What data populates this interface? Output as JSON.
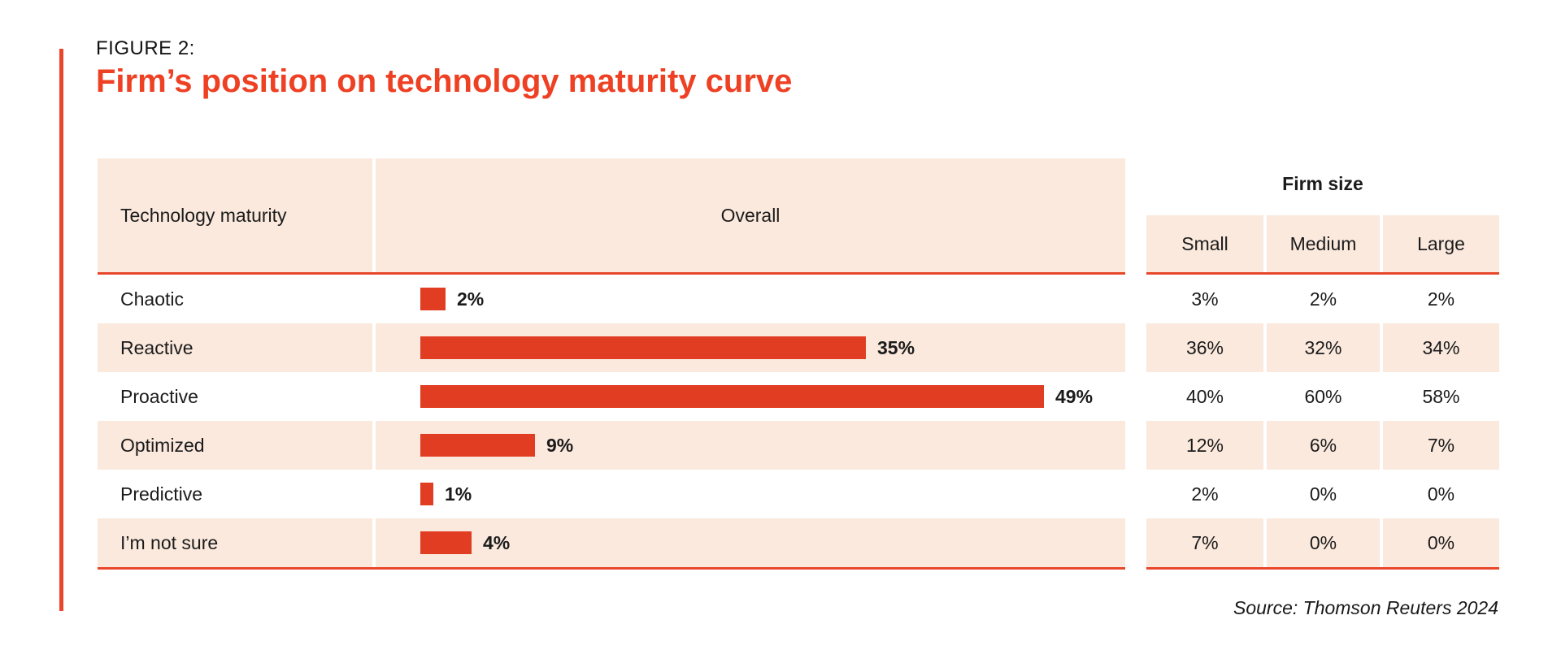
{
  "figure": {
    "label": "FIGURE 2:",
    "title": "Firm’s position on technology maturity curve"
  },
  "table": {
    "col1_header": "Technology maturity",
    "col2_header": "Overall",
    "group_header": "Firm size",
    "firm_size_columns": {
      "small": "Small",
      "medium": "Medium",
      "large": "Large"
    },
    "rows": [
      {
        "label": "Chaotic",
        "overall_value": 2,
        "overall_label": "2%",
        "small": "3%",
        "medium": "2%",
        "large": "2%"
      },
      {
        "label": "Reactive",
        "overall_value": 35,
        "overall_label": "35%",
        "small": "36%",
        "medium": "32%",
        "large": "34%"
      },
      {
        "label": "Proactive",
        "overall_value": 49,
        "overall_label": "49%",
        "small": "40%",
        "medium": "60%",
        "large": "58%"
      },
      {
        "label": "Optimized",
        "overall_value": 9,
        "overall_label": "9%",
        "small": "12%",
        "medium": "6%",
        "large": "7%"
      },
      {
        "label": "Predictive",
        "overall_value": 1,
        "overall_label": "1%",
        "small": "2%",
        "medium": "0%",
        "large": "0%"
      },
      {
        "label": "I’m not sure",
        "overall_value": 4,
        "overall_label": "4%",
        "small": "7%",
        "medium": "0%",
        "large": "0%"
      }
    ]
  },
  "source": "Source: Thomson Reuters 2024",
  "colors": {
    "accent": "#EE4023",
    "bar": "#E03D23",
    "line": "#E8472B",
    "peach": "#FAE9DC",
    "ink": "#1C1B1C"
  },
  "chart_data": {
    "type": "bar",
    "orientation": "horizontal",
    "title": "Firm’s position on technology maturity curve",
    "subtitle": "FIGURE 2:",
    "categories": [
      "Chaotic",
      "Reactive",
      "Proactive",
      "Optimized",
      "Predictive",
      "I’m not sure"
    ],
    "series": [
      {
        "name": "Overall",
        "values": [
          2,
          35,
          49,
          9,
          1,
          4
        ]
      },
      {
        "name": "Small",
        "values": [
          3,
          36,
          40,
          12,
          2,
          7
        ]
      },
      {
        "name": "Medium",
        "values": [
          2,
          32,
          60,
          6,
          0,
          0
        ]
      },
      {
        "name": "Large",
        "values": [
          2,
          34,
          58,
          7,
          0,
          0
        ]
      }
    ],
    "units": "%",
    "xlim": [
      0,
      49
    ],
    "data_labels": true,
    "grid": false,
    "legend_position": "column-headers",
    "note": "Overall series drawn as bars; Small/Medium/Large shown as table columns under 'Firm size'",
    "source": "Source: Thomson Reuters 2024"
  }
}
